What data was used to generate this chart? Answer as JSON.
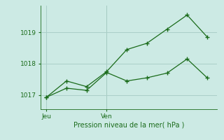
{
  "line1_x": [
    0,
    1,
    2,
    3,
    4,
    5,
    6,
    7,
    8
  ],
  "line1_y": [
    1016.93,
    1017.45,
    1017.27,
    1017.75,
    1018.45,
    1018.65,
    1019.1,
    1019.55,
    1018.85
  ],
  "line2_x": [
    0,
    1,
    2,
    3,
    4,
    5,
    6,
    7,
    8
  ],
  "line2_y": [
    1016.93,
    1017.22,
    1017.15,
    1017.72,
    1017.45,
    1017.55,
    1017.7,
    1018.15,
    1017.55
  ],
  "yticks": [
    1017,
    1018,
    1019
  ],
  "jeu_x": 0,
  "ven_x": 3,
  "xtick_labels": [
    "Jeu",
    "Ven"
  ],
  "xlabel": "Pression niveau de la mer( hPa )",
  "ylim": [
    1016.55,
    1019.85
  ],
  "xlim": [
    -0.3,
    8.5
  ],
  "line_color": "#1a6b1a",
  "bg_color": "#cceae4",
  "grid_color": "#aacfc8",
  "marker": "+",
  "linewidth": 0.9,
  "markersize": 4,
  "markeredgewidth": 1.0
}
